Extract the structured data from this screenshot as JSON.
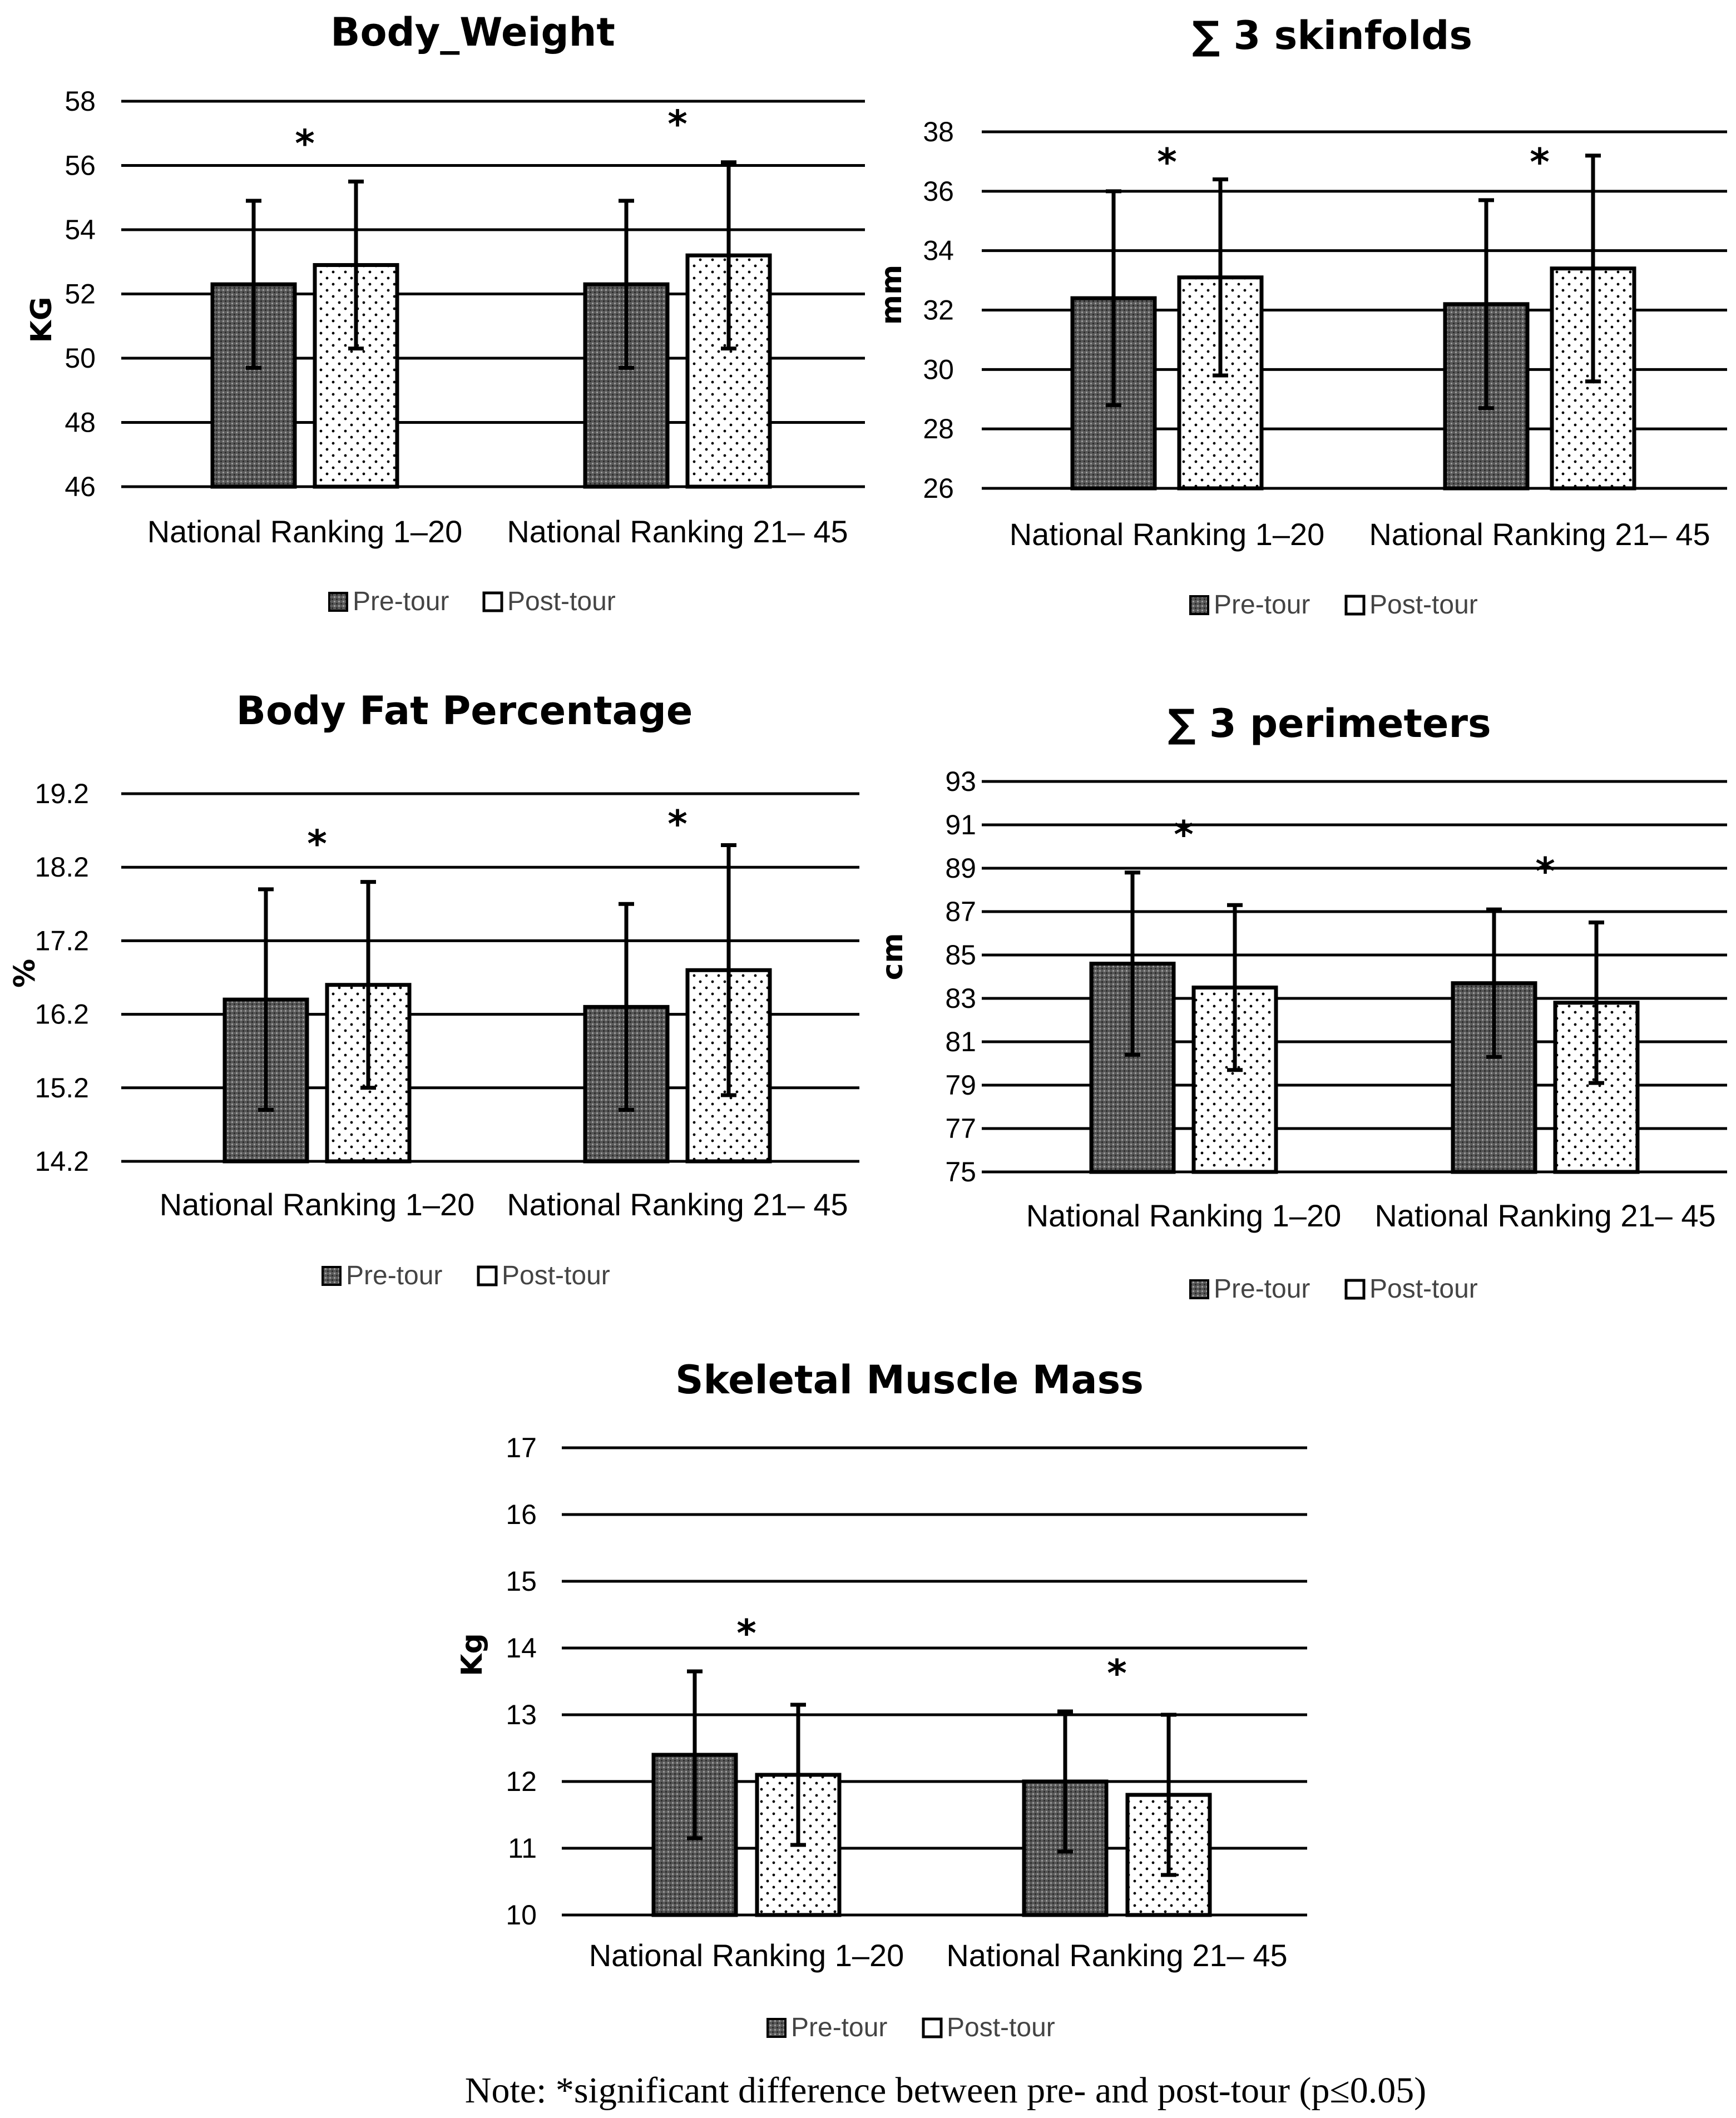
{
  "colors": {
    "pre_fill": "#595959",
    "post_fill": "#ffffff",
    "line": "#000000"
  },
  "legend": {
    "pre": "Pre-tour",
    "post": "Post-tour"
  },
  "note": "Note: *significant difference between pre- and post-tour (p≤0.05)",
  "chart_data": [
    {
      "type": "bar",
      "title": "Body_Weight",
      "ylabel": "KG",
      "xlabel": "",
      "categories": [
        "National Ranking 1–20",
        "National Ranking 21– 45"
      ],
      "ylim": [
        46,
        58
      ],
      "yticks": [
        "58",
        "56",
        "54",
        "52",
        "50",
        "48",
        "46"
      ],
      "series": [
        {
          "name": "Pre-tour",
          "values": [
            52.3,
            52.3
          ],
          "errors": [
            2.6,
            2.6
          ]
        },
        {
          "name": "Post-tour",
          "values": [
            52.9,
            53.2
          ],
          "errors": [
            2.6,
            2.9
          ]
        }
      ],
      "significance": [
        "*",
        "*"
      ]
    },
    {
      "type": "bar",
      "title": "∑ 3 skinfolds",
      "ylabel": "mm",
      "xlabel": "",
      "categories": [
        "National Ranking 1–20",
        "National Ranking 21– 45"
      ],
      "ylim": [
        26,
        38
      ],
      "yticks": [
        "38",
        "36",
        "34",
        "32",
        "30",
        "28",
        "26"
      ],
      "series": [
        {
          "name": "Pre-tour",
          "values": [
            32.4,
            32.2
          ],
          "errors": [
            3.6,
            3.5
          ]
        },
        {
          "name": "Post-tour",
          "values": [
            33.1,
            33.4
          ],
          "errors": [
            3.3,
            3.8
          ]
        }
      ],
      "significance": [
        "*",
        "*"
      ]
    },
    {
      "type": "bar",
      "title": "Body Fat Percentage",
      "ylabel": "%",
      "xlabel": "",
      "categories": [
        "National Ranking 1–20",
        "National Ranking 21– 45"
      ],
      "ylim": [
        14.2,
        19.2
      ],
      "yticks": [
        "19.2",
        "18.2",
        "17.2",
        "16.2",
        "15.2",
        "14.2"
      ],
      "series": [
        {
          "name": "Pre-tour",
          "values": [
            16.4,
            16.3
          ],
          "errors": [
            1.5,
            1.4
          ]
        },
        {
          "name": "Post-tour",
          "values": [
            16.6,
            16.8
          ],
          "errors": [
            1.4,
            1.7
          ]
        }
      ],
      "significance": [
        "*",
        "*"
      ]
    },
    {
      "type": "bar",
      "title": "∑ 3 perimeters",
      "ylabel": "cm",
      "xlabel": "",
      "categories": [
        "National Ranking 1–20",
        "National Ranking 21– 45"
      ],
      "ylim": [
        75,
        93
      ],
      "yticks": [
        "93",
        "91",
        "89",
        "87",
        "85",
        "83",
        "81",
        "79",
        "77",
        "75"
      ],
      "series": [
        {
          "name": "Pre-tour",
          "values": [
            84.6,
            83.7
          ],
          "errors": [
            4.2,
            3.4
          ]
        },
        {
          "name": "Post-tour",
          "values": [
            83.5,
            82.8
          ],
          "errors": [
            3.8,
            3.7
          ]
        }
      ],
      "significance": [
        "*",
        "*"
      ]
    },
    {
      "type": "bar",
      "title": "Skeletal Muscle Mass",
      "ylabel": "Kg",
      "xlabel": "",
      "categories": [
        "National Ranking 1–20",
        "National Ranking 21– 45"
      ],
      "ylim": [
        10,
        17
      ],
      "yticks": [
        "17",
        "16",
        "15",
        "14",
        "13",
        "12",
        "11",
        "10"
      ],
      "series": [
        {
          "name": "Pre-tour",
          "values": [
            12.4,
            12.0
          ],
          "errors": [
            1.25,
            1.05
          ]
        },
        {
          "name": "Post-tour",
          "values": [
            12.1,
            11.8
          ],
          "errors": [
            1.05,
            1.2
          ]
        }
      ],
      "significance": [
        "*",
        "*"
      ]
    }
  ]
}
